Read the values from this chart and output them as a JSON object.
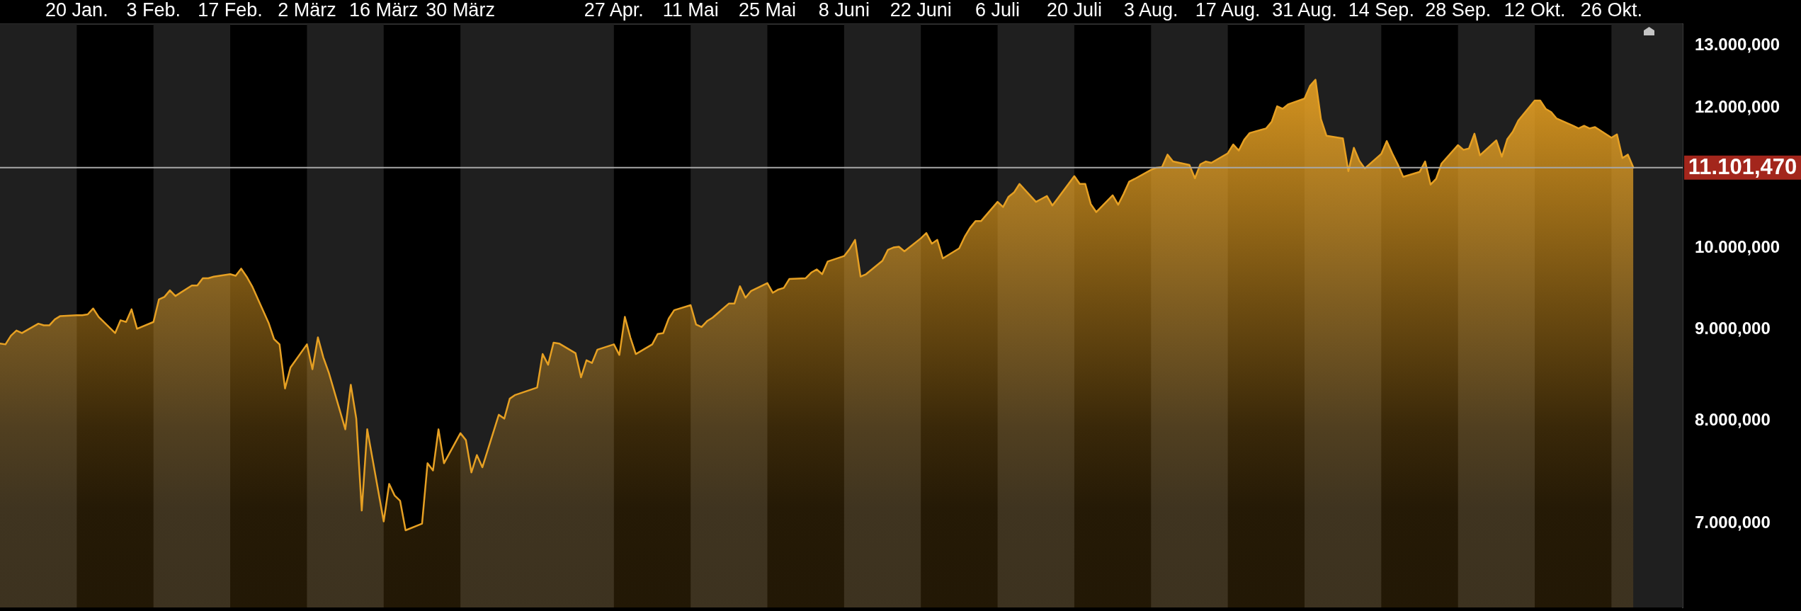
{
  "chart_data": {
    "type": "area",
    "log": true,
    "color": "#e6a023",
    "x": [
      "--01-06",
      "--01-07",
      "--01-08",
      "--01-09",
      "--01-10",
      "--01-13",
      "--01-14",
      "--01-15",
      "--01-16",
      "--01-17",
      "--01-20",
      "--01-21",
      "--01-22",
      "--01-23",
      "--01-24",
      "--01-27",
      "--01-28",
      "--01-29",
      "--01-30",
      "--01-31",
      "--02-03",
      "--02-04",
      "--02-05",
      "--02-06",
      "--02-07",
      "--02-10",
      "--02-11",
      "--02-12",
      "--02-13",
      "--02-14",
      "--02-17",
      "--02-18",
      "--02-19",
      "--02-20",
      "--02-21",
      "--02-24",
      "--02-25",
      "--02-26",
      "--02-27",
      "--02-28",
      "--03-02",
      "--03-03",
      "--03-04",
      "--03-05",
      "--03-06",
      "--03-09",
      "--03-10",
      "--03-11",
      "--03-12",
      "--03-13",
      "--03-16",
      "--03-17",
      "--03-18",
      "--03-19",
      "--03-20",
      "--03-23",
      "--03-24",
      "--03-25",
      "--03-26",
      "--03-27",
      "--03-30",
      "--03-31",
      "--04-01",
      "--04-02",
      "--04-03",
      "--04-06",
      "--04-07",
      "--04-08",
      "--04-09",
      "--04-13",
      "--04-14",
      "--04-15",
      "--04-16",
      "--04-17",
      "--04-20",
      "--04-21",
      "--04-22",
      "--04-23",
      "--04-24",
      "--04-27",
      "--04-28",
      "--04-29",
      "--04-30",
      "--05-01",
      "--05-04",
      "--05-05",
      "--05-06",
      "--05-07",
      "--05-08",
      "--05-11",
      "--05-12",
      "--05-13",
      "--05-14",
      "--05-15",
      "--05-18",
      "--05-19",
      "--05-20",
      "--05-21",
      "--05-22",
      "--05-25",
      "--05-26",
      "--05-27",
      "--05-28",
      "--05-29",
      "--06-01",
      "--06-02",
      "--06-03",
      "--06-04",
      "--06-05",
      "--06-08",
      "--06-09",
      "--06-10",
      "--06-11",
      "--06-12",
      "--06-15",
      "--06-16",
      "--06-17",
      "--06-18",
      "--06-19",
      "--06-22",
      "--06-23",
      "--06-24",
      "--06-25",
      "--06-26",
      "--06-29",
      "--06-30",
      "--07-01",
      "--07-02",
      "--07-03",
      "--07-06",
      "--07-07",
      "--07-08",
      "--07-09",
      "--07-10",
      "--07-13",
      "--07-14",
      "--07-15",
      "--07-16",
      "--07-17",
      "--07-20",
      "--07-21",
      "--07-22",
      "--07-23",
      "--07-24",
      "--07-27",
      "--07-28",
      "--07-29",
      "--07-30",
      "--07-31",
      "--08-03",
      "--08-04",
      "--08-05",
      "--08-06",
      "--08-07",
      "--08-10",
      "--08-11",
      "--08-12",
      "--08-13",
      "--08-14",
      "--08-17",
      "--08-18",
      "--08-19",
      "--08-20",
      "--08-21",
      "--08-24",
      "--08-25",
      "--08-26",
      "--08-27",
      "--08-28",
      "--08-31",
      "--09-01",
      "--09-02",
      "--09-03",
      "--09-04",
      "--09-07",
      "--09-08",
      "--09-09",
      "--09-10",
      "--09-11",
      "--09-14",
      "--09-15",
      "--09-16",
      "--09-17",
      "--09-18",
      "--09-21",
      "--09-22",
      "--09-23",
      "--09-24",
      "--09-25",
      "--09-28",
      "--09-29",
      "--09-30",
      "--10-01",
      "--10-02",
      "--10-05",
      "--10-06",
      "--10-07",
      "--10-08",
      "--10-09",
      "--10-12",
      "--10-13",
      "--10-14",
      "--10-15",
      "--10-16",
      "--10-19",
      "--10-20",
      "--10-21",
      "--10-22",
      "--10-23",
      "--10-26",
      "--10-27",
      "--10-28",
      "--10-29",
      "--10-30"
    ],
    "values": [
      8840,
      8830,
      8930,
      8990,
      8960,
      9070,
      9050,
      9050,
      9120,
      9160,
      9170,
      9170,
      9180,
      9250,
      9150,
      8960,
      9110,
      9090,
      9240,
      9010,
      9090,
      9360,
      9390,
      9470,
      9400,
      9530,
      9530,
      9620,
      9620,
      9640,
      9670,
      9650,
      9740,
      9640,
      9520,
      9080,
      8890,
      8830,
      8340,
      8570,
      8830,
      8550,
      8910,
      8680,
      8510,
      7910,
      8380,
      8020,
      7120,
      7910,
      7020,
      7370,
      7260,
      7210,
      6940,
      7000,
      7570,
      7500,
      7910,
      7570,
      7870,
      7800,
      7480,
      7650,
      7530,
      8060,
      8020,
      8230,
      8270,
      8350,
      8720,
      8600,
      8850,
      8840,
      8730,
      8460,
      8650,
      8620,
      8770,
      8830,
      8710,
      9150,
      8910,
      8720,
      8830,
      8950,
      8960,
      9130,
      9230,
      9290,
      9060,
      9030,
      9100,
      9140,
      9310,
      9310,
      9520,
      9380,
      9460,
      9560,
      9440,
      9480,
      9500,
      9610,
      9620,
      9690,
      9730,
      9670,
      9830,
      9900,
      9990,
      10110,
      9640,
      9670,
      9840,
      9980,
      10010,
      10020,
      9960,
      10130,
      10200,
      10060,
      10110,
      9870,
      10000,
      10150,
      10270,
      10360,
      10360,
      10620,
      10550,
      10690,
      10750,
      10870,
      10620,
      10660,
      10700,
      10570,
      10670,
      10980,
      10870,
      10870,
      10590,
      10480,
      10710,
      10580,
      10730,
      10900,
      10940,
      11070,
      11100,
      11110,
      11290,
      11190,
      11140,
      10950,
      11150,
      11190,
      11170,
      11310,
      11440,
      11350,
      11510,
      11610,
      11680,
      11780,
      12020,
      11980,
      12050,
      12140,
      12340,
      12440,
      11820,
      11570,
      11530,
      11050,
      11390,
      11200,
      11090,
      11300,
      11490,
      11310,
      11150,
      10970,
      11040,
      11190,
      10860,
      10940,
      11160,
      11430,
      11360,
      11380,
      11600,
      11280,
      11500,
      11260,
      11520,
      11630,
      11800,
      12110,
      12110,
      11980,
      11930,
      11830,
      11720,
      11680,
      11720,
      11680,
      11700,
      11540,
      11590,
      11240,
      11290,
      11101.47
    ],
    "xlim": [
      "--01-06",
      "--11-08"
    ],
    "xticks": [
      {
        "value": "--01-20",
        "label": "20 Jan."
      },
      {
        "value": "--02-03",
        "label": "3 Feb."
      },
      {
        "value": "--02-17",
        "label": "17 Feb."
      },
      {
        "value": "--03-02",
        "label": "2 März"
      },
      {
        "value": "--03-16",
        "label": "16 März"
      },
      {
        "value": "--03-30",
        "label": "30 März"
      },
      {
        "value": "--04-27",
        "label": "27 Apr."
      },
      {
        "value": "--05-11",
        "label": "11 Mai"
      },
      {
        "value": "--05-25",
        "label": "25 Mai"
      },
      {
        "value": "--06-08",
        "label": "8 Juni"
      },
      {
        "value": "--06-22",
        "label": "22 Juni"
      },
      {
        "value": "--07-06",
        "label": "6 Juli"
      },
      {
        "value": "--07-20",
        "label": "20 Juli"
      },
      {
        "value": "--08-03",
        "label": "3 Aug."
      },
      {
        "value": "--08-17",
        "label": "17 Aug."
      },
      {
        "value": "--08-31",
        "label": "31 Aug."
      },
      {
        "value": "--09-14",
        "label": "14 Sep."
      },
      {
        "value": "--09-28",
        "label": "28 Sep."
      },
      {
        "value": "--10-12",
        "label": "12 Okt."
      },
      {
        "value": "--10-26",
        "label": "26 Okt."
      }
    ],
    "ylim": [
      6280,
      13370
    ],
    "yticks": [
      {
        "value": 7000,
        "label": "7.000,000"
      },
      {
        "value": 8000,
        "label": "8.000,000"
      },
      {
        "value": 9000,
        "label": "9.000,000"
      },
      {
        "value": 10000,
        "label": "10.000,000"
      },
      {
        "value": 12000,
        "label": "12.000,000"
      },
      {
        "value": 13000,
        "label": "13.000,000"
      }
    ],
    "bands": [
      {
        "axis": "x",
        "from": "--01-06",
        "to": "--01-20",
        "color": "#1f1f1f"
      },
      {
        "axis": "x",
        "from": "--02-03",
        "to": "--02-17",
        "color": "#1f1f1f"
      },
      {
        "axis": "x",
        "from": "--03-02",
        "to": "--03-16",
        "color": "#1f1f1f"
      },
      {
        "axis": "x",
        "from": "--03-30",
        "to": "--04-27",
        "color": "#1f1f1f"
      },
      {
        "axis": "x",
        "from": "--05-11",
        "to": "--05-25",
        "color": "#1f1f1f"
      },
      {
        "axis": "x",
        "from": "--06-08",
        "to": "--06-22",
        "color": "#1f1f1f"
      },
      {
        "axis": "x",
        "from": "--07-06",
        "to": "--07-20",
        "color": "#1f1f1f"
      },
      {
        "axis": "x",
        "from": "--08-03",
        "to": "--08-17",
        "color": "#1f1f1f"
      },
      {
        "axis": "x",
        "from": "--08-31",
        "to": "--09-14",
        "color": "#1f1f1f"
      },
      {
        "axis": "x",
        "from": "--09-28",
        "to": "--10-12",
        "color": "#1f1f1f"
      },
      {
        "axis": "x",
        "from": "--10-26",
        "to": "--11-08",
        "color": "#1f1f1f"
      }
    ],
    "ref_lines": [
      {
        "axis": "y",
        "value": 11101.47,
        "label": "11.101,470",
        "color": "#a8a8a8"
      }
    ]
  }
}
